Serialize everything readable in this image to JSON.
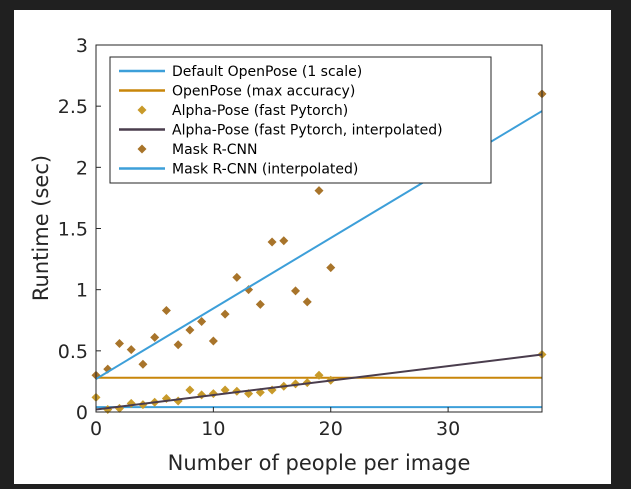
{
  "chart_data": {
    "type": "scatter",
    "xlabel": "Number of people per image",
    "ylabel": "Runtime (sec)",
    "xlim": [
      0,
      38
    ],
    "ylim": [
      0,
      3
    ],
    "xticks": [
      0,
      10,
      20,
      30
    ],
    "yticks": [
      0,
      0.5,
      1,
      1.5,
      2,
      2.5,
      3
    ],
    "grid": false,
    "legend_position": "top-left",
    "series": [
      {
        "name": "Default OpenPose (1 scale)",
        "kind": "line",
        "color": "#3d9fd9",
        "x": [
          0,
          38
        ],
        "y": [
          0.04,
          0.04
        ]
      },
      {
        "name": "OpenPose (max accuracy)",
        "kind": "line",
        "color": "#c8860a",
        "x": [
          0,
          38
        ],
        "y": [
          0.28,
          0.28
        ]
      },
      {
        "name": "Alpha-Pose (fast Pytorch)",
        "kind": "scatter",
        "marker": "diamond",
        "color": "#c89a2a",
        "x": [
          0,
          1,
          2,
          3,
          4,
          5,
          6,
          7,
          8,
          9,
          10,
          11,
          12,
          13,
          14,
          15,
          16,
          17,
          18,
          19,
          20,
          38
        ],
        "y": [
          0.12,
          0.02,
          0.03,
          0.07,
          0.06,
          0.08,
          0.11,
          0.09,
          0.18,
          0.14,
          0.15,
          0.18,
          0.17,
          0.15,
          0.16,
          0.18,
          0.21,
          0.23,
          0.24,
          0.3,
          0.26,
          0.47
        ]
      },
      {
        "name": "Alpha-Pose (fast Pytorch, interpolated)",
        "kind": "line",
        "color": "#4a3d4d",
        "x": [
          0,
          38
        ],
        "y": [
          0.02,
          0.47
        ]
      },
      {
        "name": "Mask R-CNN",
        "kind": "scatter",
        "marker": "diamond",
        "color": "#a8742a",
        "x": [
          0,
          1,
          2,
          3,
          4,
          5,
          6,
          7,
          8,
          9,
          10,
          11,
          12,
          13,
          14,
          15,
          16,
          17,
          18,
          19,
          20,
          38
        ],
        "y": [
          0.3,
          0.35,
          0.56,
          0.51,
          0.39,
          0.61,
          0.83,
          0.55,
          0.67,
          0.74,
          0.58,
          0.8,
          1.1,
          1.0,
          0.88,
          1.39,
          1.4,
          0.99,
          0.9,
          1.81,
          1.18,
          2.6
        ]
      },
      {
        "name": "Mask R-CNN (interpolated)",
        "kind": "line",
        "color": "#3d9fd9",
        "x": [
          0,
          38
        ],
        "y": [
          0.27,
          2.46
        ]
      }
    ]
  }
}
